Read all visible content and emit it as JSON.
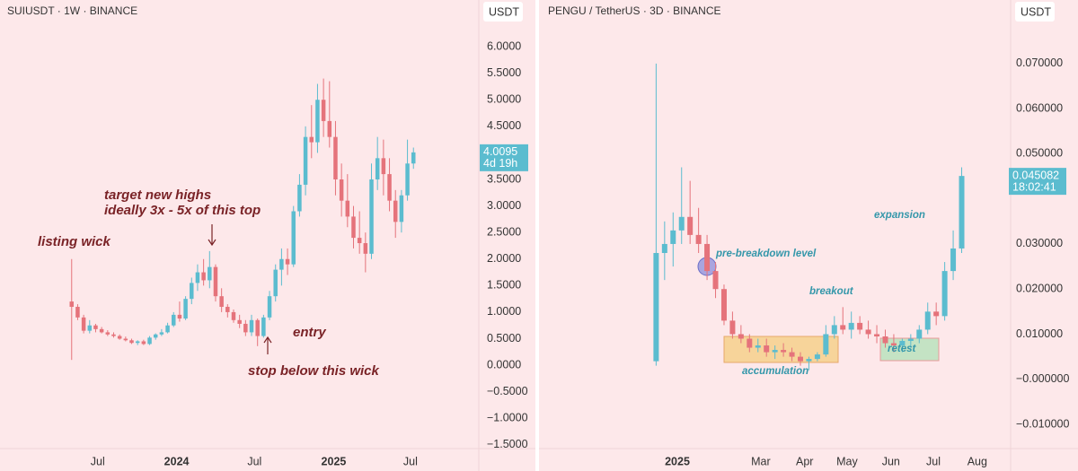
{
  "chart_data": [
    {
      "type": "candlestick",
      "title": "SUIUSDT · 1W · BINANCE",
      "currency": "USDT",
      "x": [
        0,
        2,
        4,
        6,
        8,
        10,
        12,
        14,
        16,
        18,
        20,
        22,
        24,
        26,
        28,
        30,
        32,
        34,
        36,
        38,
        40,
        42,
        44,
        46,
        48,
        50,
        52,
        54,
        56,
        58,
        60,
        62,
        64,
        66,
        68,
        70,
        72,
        74,
        76,
        78,
        80,
        82,
        84,
        86,
        88,
        90,
        92,
        94,
        96,
        98,
        100,
        102,
        104,
        106,
        108,
        110,
        112,
        114
      ],
      "open": [
        1.2,
        1.1,
        0.9,
        0.65,
        0.75,
        0.68,
        0.62,
        0.58,
        0.55,
        0.5,
        0.47,
        0.42,
        0.45,
        0.4,
        0.52,
        0.58,
        0.62,
        0.75,
        0.95,
        0.88,
        1.25,
        1.55,
        1.75,
        1.6,
        1.85,
        1.3,
        1.1,
        1,
        0.85,
        0.78,
        0.62,
        0.85,
        0.55,
        0.9,
        1.3,
        1.8,
        2,
        1.9,
        2.9,
        3.4,
        4.3,
        4.2,
        5,
        4.6,
        4.3,
        3.5,
        3.1,
        2.8,
        2.4,
        2.3,
        2.1,
        3.5,
        3.9,
        3.6,
        3.1,
        2.7,
        3.2,
        3.8
      ],
      "high": [
        2,
        1.15,
        0.95,
        0.85,
        0.78,
        0.72,
        0.66,
        0.62,
        0.58,
        0.54,
        0.5,
        0.47,
        0.48,
        0.55,
        0.6,
        0.68,
        0.8,
        1,
        1.2,
        1.3,
        1.65,
        1.9,
        2,
        2.15,
        1.9,
        1.45,
        1.15,
        1.05,
        0.95,
        0.85,
        0.95,
        0.88,
        0.95,
        1.4,
        1.9,
        2.2,
        2.2,
        3,
        3.6,
        4.5,
        4.9,
        5.3,
        5.4,
        5.35,
        4.6,
        3.8,
        3.6,
        3,
        2.9,
        2.5,
        3.8,
        4.3,
        4.25,
        3.9,
        3.3,
        3.3,
        4.25,
        4.1
      ],
      "low": [
        0.1,
        0.85,
        0.6,
        0.6,
        0.62,
        0.6,
        0.55,
        0.52,
        0.48,
        0.45,
        0.4,
        0.38,
        0.38,
        0.38,
        0.48,
        0.55,
        0.6,
        0.72,
        0.82,
        0.85,
        1.15,
        1.4,
        1.5,
        1.45,
        1.2,
        1,
        0.9,
        0.8,
        0.7,
        0.55,
        0.55,
        0.36,
        0.52,
        0.85,
        1.2,
        1.5,
        1.7,
        1.85,
        2.8,
        3.2,
        3.9,
        4,
        4.3,
        4.1,
        3.2,
        2.8,
        2.6,
        2.2,
        2.1,
        1.75,
        2,
        3.3,
        3.2,
        2.9,
        2.4,
        2.5,
        3.1,
        3.7
      ],
      "close": [
        1.1,
        0.9,
        0.65,
        0.75,
        0.68,
        0.62,
        0.58,
        0.55,
        0.5,
        0.47,
        0.42,
        0.45,
        0.4,
        0.52,
        0.58,
        0.62,
        0.75,
        0.95,
        0.88,
        1.25,
        1.55,
        1.75,
        1.6,
        1.85,
        1.3,
        1.1,
        1,
        0.85,
        0.78,
        0.62,
        0.85,
        0.55,
        0.9,
        1.3,
        1.8,
        2,
        1.9,
        2.9,
        3.4,
        4.3,
        4.2,
        5,
        4.6,
        4.3,
        3.5,
        3.1,
        2.8,
        2.4,
        2.3,
        2.1,
        3.5,
        3.9,
        3.6,
        3.1,
        2.7,
        3.2,
        3.8,
        4.0095
      ],
      "up_color": "#5bbccf",
      "down_color": "#e5737b",
      "xlim": [
        -23.9,
        135.8
      ],
      "ylim": [
        -1.57,
        6.88
      ],
      "xticks": [
        {
          "value": 8.7,
          "label": "Jul"
        },
        {
          "value": 35,
          "label": "2024"
        },
        {
          "value": 61,
          "label": "Jul"
        },
        {
          "value": 87.4,
          "label": "2025"
        },
        {
          "value": 113,
          "label": "Jul"
        }
      ],
      "yticks": [
        {
          "value": 6,
          "label": "6.0000"
        },
        {
          "value": 5.5,
          "label": "5.5000"
        },
        {
          "value": 5,
          "label": "5.0000"
        },
        {
          "value": 4.5,
          "label": "4.5000"
        },
        {
          "value": 3.5,
          "label": "3.5000"
        },
        {
          "value": 3,
          "label": "3.0000"
        },
        {
          "value": 2.5,
          "label": "2.5000"
        },
        {
          "value": 2,
          "label": "2.0000"
        },
        {
          "value": 1.5,
          "label": "1.5000"
        },
        {
          "value": 1,
          "label": "1.0000"
        },
        {
          "value": 0.5,
          "label": "0.5000"
        },
        {
          "value": 0,
          "label": "0.0000"
        },
        {
          "value": -0.5,
          "label": "−0.5000"
        },
        {
          "value": -1,
          "label": "−1.0000"
        },
        {
          "value": -1.5,
          "label": "−1.5000"
        }
      ],
      "last_price": 4.0095,
      "countdown": "4d 19h",
      "annotations": [
        "listing wick",
        "target new highs",
        "ideally 3x - 5x of this top",
        "entry",
        "stop below this wick"
      ]
    },
    {
      "type": "candlestick",
      "title": "PENGU / TetherUS · 3D · BINANCE",
      "currency": "USDT",
      "x": [
        -15,
        -9,
        -3,
        3,
        9,
        15,
        21,
        27,
        33,
        39,
        45,
        51,
        57,
        63,
        69,
        75,
        81,
        87,
        93,
        99,
        105,
        111,
        117,
        123,
        129,
        135,
        141,
        147,
        153,
        159,
        165,
        171,
        177,
        183,
        189,
        195,
        201
      ],
      "open": [
        0.004,
        0.028,
        0.03,
        0.033,
        0.036,
        0.032,
        0.03,
        0.024,
        0.02,
        0.013,
        0.01,
        0.009,
        0.007,
        0.0075,
        0.006,
        0.0065,
        0.006,
        0.005,
        0.004,
        0.0045,
        0.0055,
        0.01,
        0.012,
        0.011,
        0.0125,
        0.011,
        0.01,
        0.0095,
        0.008,
        0.0075,
        0.0085,
        0.009,
        0.011,
        0.015,
        0.014,
        0.024,
        0.029
      ],
      "high": [
        0.07,
        0.035,
        0.037,
        0.047,
        0.044,
        0.038,
        0.032,
        0.026,
        0.021,
        0.015,
        0.012,
        0.01,
        0.009,
        0.009,
        0.0075,
        0.008,
        0.007,
        0.006,
        0.005,
        0.006,
        0.012,
        0.014,
        0.016,
        0.015,
        0.014,
        0.013,
        0.012,
        0.011,
        0.01,
        0.009,
        0.01,
        0.012,
        0.017,
        0.017,
        0.026,
        0.033,
        0.047
      ],
      "low": [
        0.003,
        0.022,
        0.025,
        0.03,
        0.03,
        0.028,
        0.022,
        0.018,
        0.012,
        0.009,
        0.008,
        0.006,
        0.006,
        0.005,
        0.0045,
        0.005,
        0.004,
        0.003,
        0.002,
        0.004,
        0.005,
        0.009,
        0.01,
        0.009,
        0.01,
        0.009,
        0.008,
        0.007,
        0.006,
        0.006,
        0.007,
        0.008,
        0.01,
        0.012,
        0.013,
        0.022,
        0.028
      ],
      "close": [
        0.028,
        0.03,
        0.033,
        0.036,
        0.032,
        0.03,
        0.024,
        0.02,
        0.013,
        0.01,
        0.009,
        0.007,
        0.0075,
        0.006,
        0.0065,
        0.006,
        0.005,
        0.004,
        0.0045,
        0.0055,
        0.01,
        0.012,
        0.011,
        0.0125,
        0.011,
        0.01,
        0.0095,
        0.008,
        0.0075,
        0.0085,
        0.009,
        0.011,
        0.015,
        0.014,
        0.024,
        0.029,
        0.045082
      ],
      "up_color": "#5bbccf",
      "down_color": "#e5737b",
      "xlim": [
        -97.8,
        235.6
      ],
      "ylim": [
        -0.01537,
        0.0841
      ],
      "xticks": [
        {
          "value": 0,
          "label": "2025"
        },
        {
          "value": 59,
          "label": "Mar"
        },
        {
          "value": 90,
          "label": "Apr"
        },
        {
          "value": 120,
          "label": "May"
        },
        {
          "value": 151,
          "label": "Jun"
        },
        {
          "value": 181,
          "label": "Jul"
        },
        {
          "value": 212,
          "label": "Aug"
        }
      ],
      "yticks": [
        {
          "value": 0.07,
          "label": "0.070000"
        },
        {
          "value": 0.06,
          "label": "0.060000"
        },
        {
          "value": 0.05,
          "label": "0.050000"
        },
        {
          "value": 0.03,
          "label": "0.030000"
        },
        {
          "value": 0.02,
          "label": "0.020000"
        },
        {
          "value": 0.01,
          "label": "0.010000"
        },
        {
          "value": 0,
          "label": "−0.000000"
        },
        {
          "value": -0.01,
          "label": "−0.010000"
        }
      ],
      "last_price": 0.045082,
      "countdown": "18:02:41",
      "annotations": [
        "pre-breakdown level",
        "breakout",
        "expansion",
        "accumulation",
        "retest"
      ]
    }
  ]
}
